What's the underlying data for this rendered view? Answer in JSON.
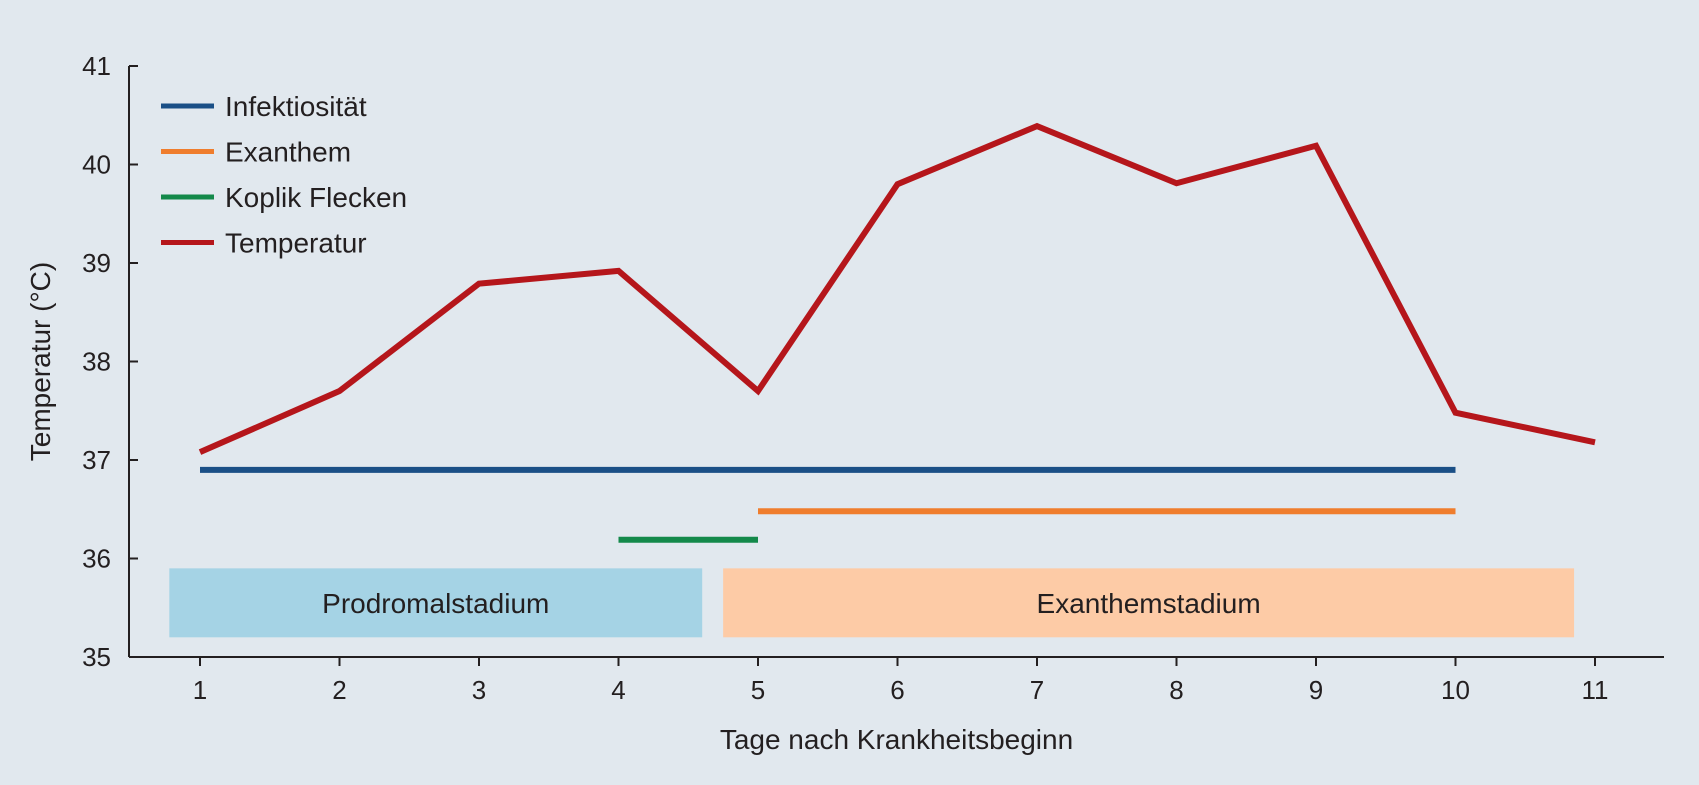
{
  "chart_data": {
    "type": "line",
    "xlabel": "Tage nach Krankheitsbeginn",
    "ylabel": "Temperatur (°C)",
    "xlim": [
      0.5,
      11.5
    ],
    "ylim": [
      35,
      41
    ],
    "x_ticks": [
      1,
      2,
      3,
      4,
      5,
      6,
      7,
      8,
      9,
      10,
      11
    ],
    "y_ticks": [
      35,
      36,
      37,
      38,
      39,
      40,
      41
    ],
    "grid": false,
    "legend_position": "top-left",
    "series": [
      {
        "name": "Infektiosität",
        "color": "#1a4f86",
        "kind": "range",
        "x": [
          1,
          10
        ],
        "y": [
          36.9,
          36.9
        ]
      },
      {
        "name": "Exanthem",
        "color": "#ef7d2d",
        "kind": "range",
        "x": [
          5,
          10
        ],
        "y": [
          36.48,
          36.48
        ]
      },
      {
        "name": "Koplik Flecken",
        "color": "#13894a",
        "kind": "range",
        "x": [
          4,
          5
        ],
        "y": [
          36.19,
          36.19
        ]
      },
      {
        "name": "Temperatur",
        "color": "#b5161b",
        "kind": "line",
        "x": [
          1,
          2,
          3,
          4,
          5,
          6,
          7,
          8,
          9,
          10,
          11
        ],
        "y": [
          37.08,
          37.7,
          38.79,
          38.92,
          37.7,
          39.8,
          40.39,
          39.81,
          40.19,
          37.48,
          37.18
        ]
      }
    ],
    "bands": [
      {
        "label": "Prodromalstadium",
        "color": "#a5d3e5",
        "x": [
          0.78,
          4.6
        ],
        "y": [
          35.2,
          35.9
        ]
      },
      {
        "label": "Exanthemstadium",
        "color": "#fdcba6",
        "x": [
          4.75,
          10.85
        ],
        "y": [
          35.2,
          35.9
        ]
      }
    ]
  }
}
